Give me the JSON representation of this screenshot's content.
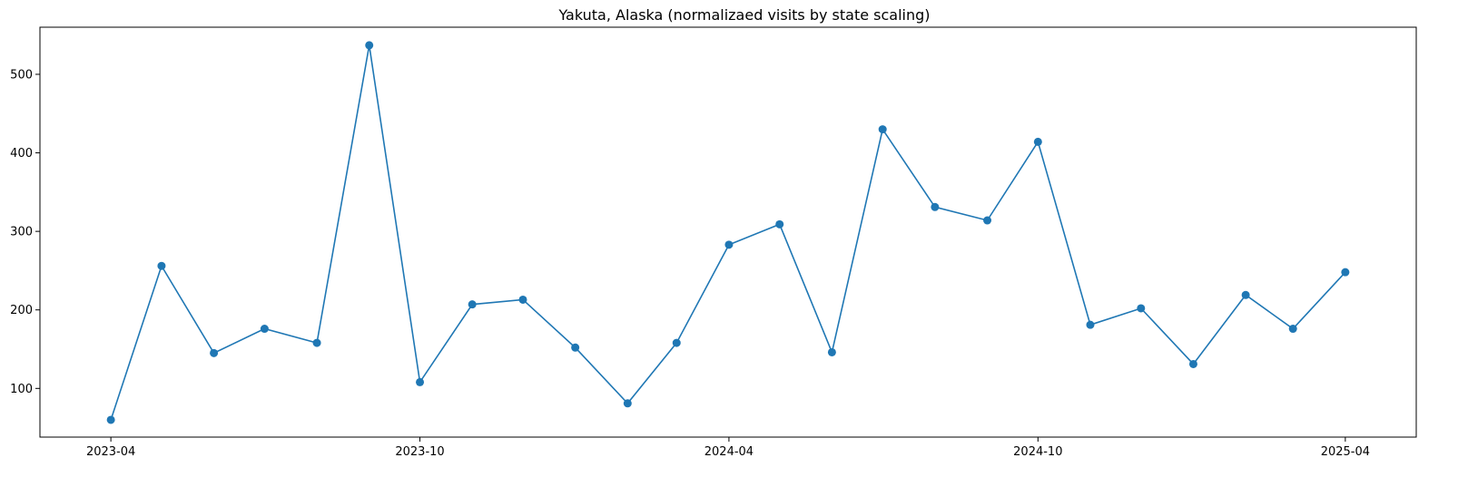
{
  "chart_data": {
    "type": "line",
    "title": "Yakuta, Alaska (normalizaed visits by state scaling)",
    "xlabel": "",
    "ylabel": "",
    "x_ticks": [
      "2023-04",
      "2023-10",
      "2024-04",
      "2024-10",
      "2025-04"
    ],
    "y_ticks": [
      100,
      200,
      300,
      400,
      500
    ],
    "ylim": [
      38,
      560
    ],
    "xlim": [
      "2023-02-18",
      "2025-05-13"
    ],
    "grid": false,
    "legend": "none",
    "series_color": "#1f77b4",
    "series": [
      {
        "x": [
          "2023-04-01",
          "2023-05-01",
          "2023-06-01",
          "2023-07-01",
          "2023-08-01",
          "2023-09-01",
          "2023-10-01",
          "2023-11-01",
          "2023-12-01",
          "2024-01-01",
          "2024-02-01",
          "2024-03-01",
          "2024-04-01",
          "2024-05-01",
          "2024-06-01",
          "2024-07-01",
          "2024-08-01",
          "2024-09-01",
          "2024-10-01",
          "2024-11-01",
          "2024-12-01",
          "2025-01-01",
          "2025-02-01",
          "2025-03-01",
          "2025-04-01"
        ],
        "values": [
          60,
          256,
          145,
          176,
          158,
          537,
          108,
          207,
          213,
          152,
          81,
          158,
          283,
          309,
          146,
          430,
          331,
          314,
          414,
          181,
          202,
          131,
          219,
          176,
          248
        ]
      }
    ]
  }
}
